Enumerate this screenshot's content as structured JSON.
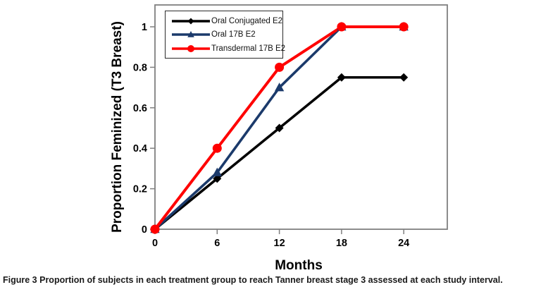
{
  "figure": {
    "caption_label": "Figure 3",
    "caption_text": "Proportion of subjects in each treatment group to reach Tanner breast stage 3 assessed at each study interval."
  },
  "chart_data": {
    "type": "line",
    "x": [
      0,
      6,
      12,
      18,
      24
    ],
    "series": [
      {
        "name": "Oral Conjugated E2",
        "values": [
          0,
          0.25,
          0.5,
          0.75,
          0.75
        ],
        "color": "#000000",
        "marker": "diamond"
      },
      {
        "name": "Oral 17B E2",
        "values": [
          0,
          0.28,
          0.7,
          1,
          1
        ],
        "color": "#1b3a6b",
        "marker": "triangle"
      },
      {
        "name": "Transdermal 17B E2",
        "values": [
          0,
          0.4,
          0.8,
          1,
          1
        ],
        "color": "#ff0000",
        "marker": "circle"
      }
    ],
    "xlabel": "Months",
    "ylabel": "Proportion Feminized (T3 Breast)",
    "xticks": [
      0,
      6,
      12,
      18,
      24
    ],
    "xtick_labels": [
      "0",
      "6",
      "12",
      "18",
      "24"
    ],
    "yticks": [
      0,
      0.2,
      0.4,
      0.6,
      0.8,
      1
    ],
    "ytick_labels": [
      "0",
      "0.2",
      "0.4",
      "0.6",
      "0.8",
      "1"
    ],
    "xlim": [
      0,
      28.2
    ],
    "ylim": [
      0,
      1.108
    ],
    "grid": false,
    "legend_position": "top-left-inside",
    "axis_color": "#808080",
    "tick_label_color": "#000000"
  }
}
